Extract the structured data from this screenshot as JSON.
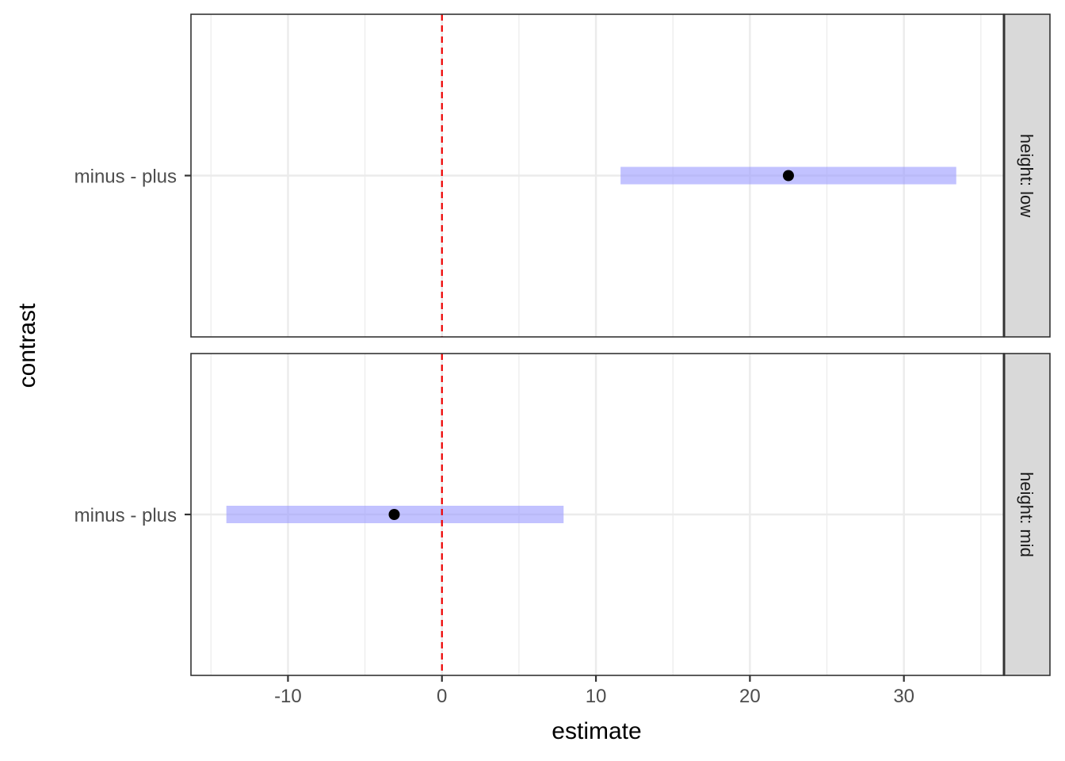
{
  "chart_data": {
    "type": "scatter",
    "xlabel": "estimate",
    "ylabel": "contrast",
    "xlim": [
      -16.3,
      36.5
    ],
    "x_ticks": [
      -10,
      0,
      10,
      20,
      30
    ],
    "x_tick_labels": [
      "-10",
      "0",
      "10",
      "20",
      "30"
    ],
    "reference_line": {
      "x": 0,
      "color": "#ee0000",
      "style": "dashed"
    },
    "interval_color": "#9999ff",
    "point_color": "#000000",
    "grid": true,
    "facets": [
      {
        "label": "height: low",
        "category": "minus - plus",
        "estimate": 22.5,
        "lower": 11.6,
        "upper": 33.4
      },
      {
        "label": "height: mid",
        "category": "minus - plus",
        "estimate": -3.1,
        "lower": -14,
        "upper": 7.9
      }
    ]
  }
}
